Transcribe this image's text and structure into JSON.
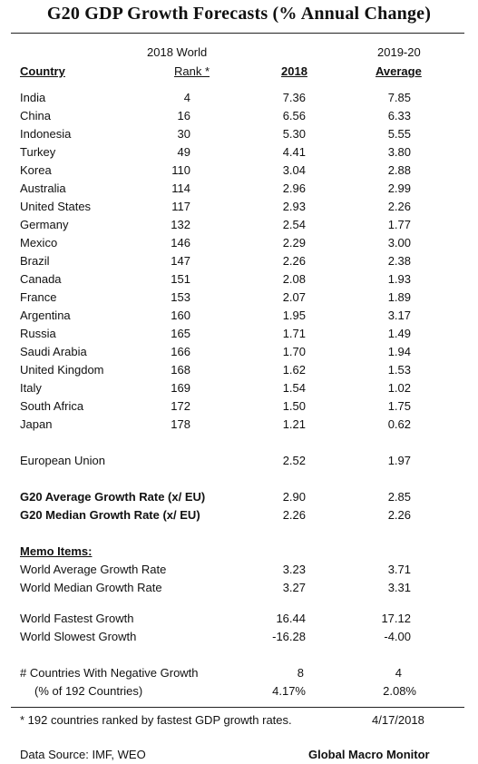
{
  "title": "G20 GDP Growth Forecasts  (% Annual Change)",
  "headers": {
    "rank_line1": "2018 World",
    "rank_line2": "Rank *",
    "country": "Country",
    "y2018": "2018",
    "avg_line1": "2019-20",
    "avg_line2": "Average"
  },
  "countries": [
    {
      "name": "India",
      "rank": "4",
      "y2018": "7.36",
      "avg": "7.85"
    },
    {
      "name": "China",
      "rank": "16",
      "y2018": "6.56",
      "avg": "6.33"
    },
    {
      "name": "Indonesia",
      "rank": "30",
      "y2018": "5.30",
      "avg": "5.55"
    },
    {
      "name": "Turkey",
      "rank": "49",
      "y2018": "4.41",
      "avg": "3.80"
    },
    {
      "name": "Korea",
      "rank": "110",
      "y2018": "3.04",
      "avg": "2.88"
    },
    {
      "name": "Australia",
      "rank": "114",
      "y2018": "2.96",
      "avg": "2.99"
    },
    {
      "name": "United States",
      "rank": "117",
      "y2018": "2.93",
      "avg": "2.26"
    },
    {
      "name": "Germany",
      "rank": "132",
      "y2018": "2.54",
      "avg": "1.77"
    },
    {
      "name": "Mexico",
      "rank": "146",
      "y2018": "2.29",
      "avg": "3.00"
    },
    {
      "name": "Brazil",
      "rank": "147",
      "y2018": "2.26",
      "avg": "2.38"
    },
    {
      "name": "Canada",
      "rank": "151",
      "y2018": "2.08",
      "avg": "1.93"
    },
    {
      "name": "France",
      "rank": "153",
      "y2018": "2.07",
      "avg": "1.89"
    },
    {
      "name": "Argentina",
      "rank": "160",
      "y2018": "1.95",
      "avg": "3.17"
    },
    {
      "name": "Russia",
      "rank": "165",
      "y2018": "1.71",
      "avg": "1.49"
    },
    {
      "name": "Saudi Arabia",
      "rank": "166",
      "y2018": "1.70",
      "avg": "1.94"
    },
    {
      "name": "United Kingdom",
      "rank": "168",
      "y2018": "1.62",
      "avg": "1.53"
    },
    {
      "name": "Italy",
      "rank": "169",
      "y2018": "1.54",
      "avg": "1.02"
    },
    {
      "name": "South Africa",
      "rank": "172",
      "y2018": "1.50",
      "avg": "1.75"
    },
    {
      "name": "Japan",
      "rank": "178",
      "y2018": "1.21",
      "avg": "0.62"
    }
  ],
  "eu": {
    "name": "European Union",
    "y2018": "2.52",
    "avg": "1.97"
  },
  "g20_avg": {
    "name": "G20 Average Growth Rate (x/ EU)",
    "y2018": "2.90",
    "avg": "2.85"
  },
  "g20_median": {
    "name": "G20 Median Growth Rate (x/ EU)",
    "y2018": "2.26",
    "avg": "2.26"
  },
  "memo": {
    "heading": "Memo Items:",
    "world_avg": {
      "name": "World Average Growth Rate",
      "y2018": "3.23",
      "avg": "3.71"
    },
    "world_median": {
      "name": "World Median Growth Rate",
      "y2018": "3.27",
      "avg": "3.31"
    },
    "fastest": {
      "name": "World Fastest Growth",
      "y2018": "16.44",
      "avg": "17.12"
    },
    "slowest": {
      "name": "World Slowest Growth",
      "y2018": "-16.28",
      "avg": "-4.00"
    },
    "neg_count": {
      "name": "# Countries With Negative Growth",
      "y2018": "8",
      "avg": "4"
    },
    "neg_pct": {
      "name": "(% of 192 Countries)",
      "y2018": "4.17%",
      "avg": "2.08%"
    }
  },
  "footnote": "* 192 countries ranked by fastest GDP growth rates.",
  "date": "4/17/2018",
  "source": "Data Source:  IMF, WEO",
  "brand": "Global Macro Monitor"
}
